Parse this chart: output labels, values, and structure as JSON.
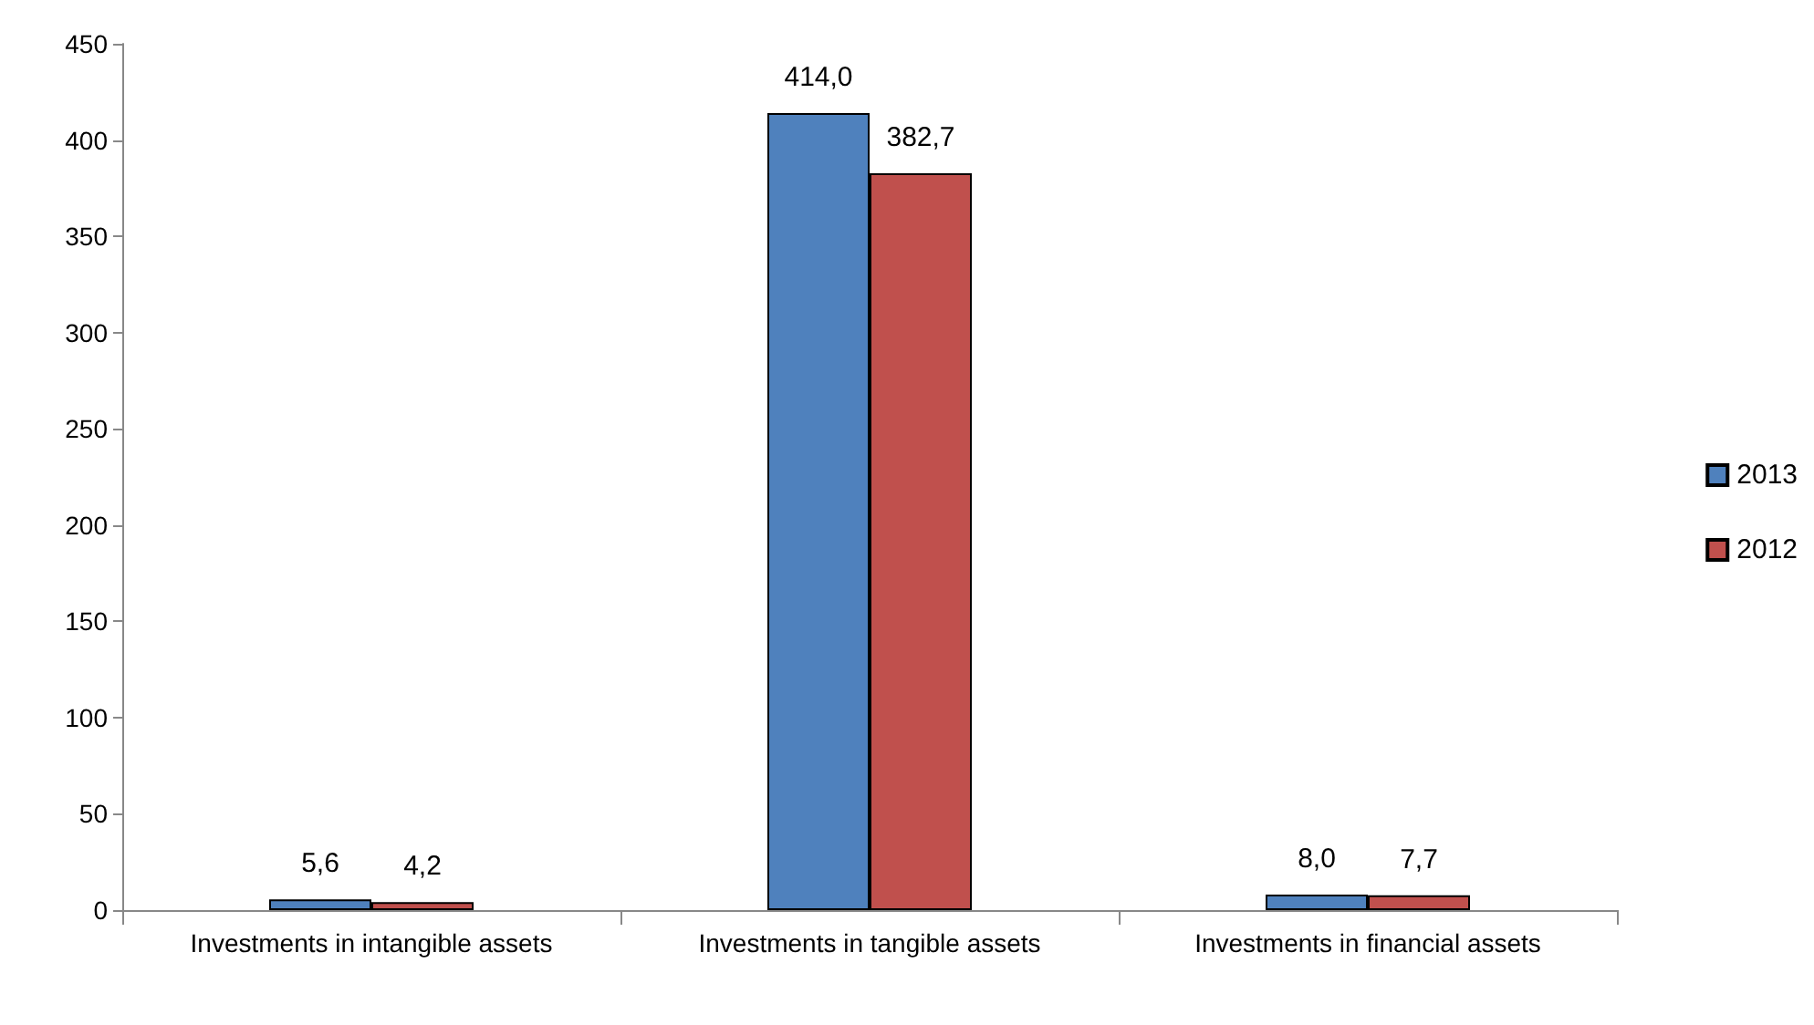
{
  "chart_data": {
    "type": "bar",
    "categories": [
      "Investments in intangible assets",
      "Investments in tangible assets",
      "Investments in financial assets"
    ],
    "series": [
      {
        "name": "2013",
        "color": "#4f81bd",
        "values": [
          5.6,
          414.0,
          8.0
        ],
        "value_labels": [
          "5,6",
          "414,0",
          "8,0"
        ]
      },
      {
        "name": "2012",
        "color": "#c0504d",
        "values": [
          4.2,
          382.7,
          7.7
        ],
        "value_labels": [
          "4,2",
          "382,7",
          "7,7"
        ]
      }
    ],
    "ylim": [
      0,
      450
    ],
    "yticks": [
      0,
      50,
      100,
      150,
      200,
      250,
      300,
      350,
      400,
      450
    ],
    "grid": false,
    "legend": "right"
  }
}
